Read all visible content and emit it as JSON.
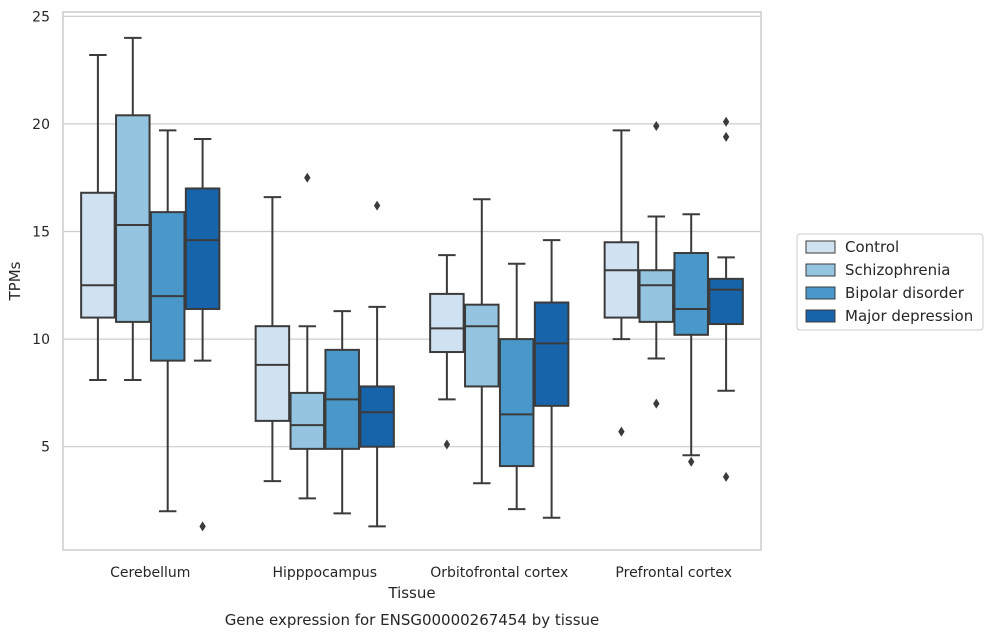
{
  "chart_data": {
    "type": "box",
    "title": "",
    "caption": "Gene expression for ENSG00000267454 by tissue",
    "xlabel": "Tissue",
    "ylabel": "TPMs",
    "ylim": [
      0.2,
      25.2
    ],
    "yticks": [
      5,
      10,
      15,
      20,
      25
    ],
    "grid": "horizontal",
    "legend_position": "right",
    "categories": [
      "Cerebellum",
      "Hipppocampus",
      "Orbitofrontal cortex",
      "Prefrontal cortex"
    ],
    "series": [
      {
        "name": "Control",
        "color": "#d0e1f2",
        "boxes": [
          {
            "whisker_low": 8.1,
            "q1": 11.0,
            "median": 12.5,
            "q3": 16.8,
            "whisker_high": 23.2,
            "outliers": []
          },
          {
            "whisker_low": 3.4,
            "q1": 6.2,
            "median": 8.8,
            "q3": 10.6,
            "whisker_high": 16.6,
            "outliers": []
          },
          {
            "whisker_low": 7.2,
            "q1": 9.4,
            "median": 10.5,
            "q3": 12.1,
            "whisker_high": 13.9,
            "outliers": [
              5.1
            ]
          },
          {
            "whisker_low": 10.0,
            "q1": 11.0,
            "median": 13.2,
            "q3": 14.5,
            "whisker_high": 19.7,
            "outliers": [
              5.7
            ]
          }
        ]
      },
      {
        "name": "Schizophrenia",
        "color": "#94c4df",
        "boxes": [
          {
            "whisker_low": 8.1,
            "q1": 10.8,
            "median": 15.3,
            "q3": 20.4,
            "whisker_high": 24.0,
            "outliers": []
          },
          {
            "whisker_low": 2.6,
            "q1": 4.9,
            "median": 6.0,
            "q3": 7.5,
            "whisker_high": 10.6,
            "outliers": [
              17.5
            ]
          },
          {
            "whisker_low": 3.3,
            "q1": 7.8,
            "median": 10.6,
            "q3": 11.6,
            "whisker_high": 16.5,
            "outliers": []
          },
          {
            "whisker_low": 9.1,
            "q1": 10.8,
            "median": 12.5,
            "q3": 13.2,
            "whisker_high": 15.7,
            "outliers": [
              19.9,
              7.0
            ]
          }
        ]
      },
      {
        "name": "Bipolar disorder",
        "color": "#4a98c9",
        "boxes": [
          {
            "whisker_low": 2.0,
            "q1": 9.0,
            "median": 12.0,
            "q3": 15.9,
            "whisker_high": 19.7,
            "outliers": []
          },
          {
            "whisker_low": 1.9,
            "q1": 4.9,
            "median": 7.2,
            "q3": 9.5,
            "whisker_high": 11.3,
            "outliers": []
          },
          {
            "whisker_low": 2.1,
            "q1": 4.1,
            "median": 6.5,
            "q3": 10.0,
            "whisker_high": 13.5,
            "outliers": []
          },
          {
            "whisker_low": 4.6,
            "q1": 10.2,
            "median": 11.4,
            "q3": 14.0,
            "whisker_high": 15.8,
            "outliers": [
              4.3
            ]
          }
        ]
      },
      {
        "name": "Major depression",
        "color": "#1764ab",
        "boxes": [
          {
            "whisker_low": 9.0,
            "q1": 11.4,
            "median": 14.6,
            "q3": 17.0,
            "whisker_high": 19.3,
            "outliers": [
              1.3
            ]
          },
          {
            "whisker_low": 1.3,
            "q1": 5.0,
            "median": 6.6,
            "q3": 7.8,
            "whisker_high": 11.5,
            "outliers": [
              16.2
            ]
          },
          {
            "whisker_low": 1.7,
            "q1": 6.9,
            "median": 9.8,
            "q3": 11.7,
            "whisker_high": 14.6,
            "outliers": []
          },
          {
            "whisker_low": 7.6,
            "q1": 10.7,
            "median": 12.3,
            "q3": 12.8,
            "whisker_high": 13.8,
            "outliers": [
              20.1,
              19.4,
              3.6
            ]
          }
        ]
      }
    ]
  }
}
